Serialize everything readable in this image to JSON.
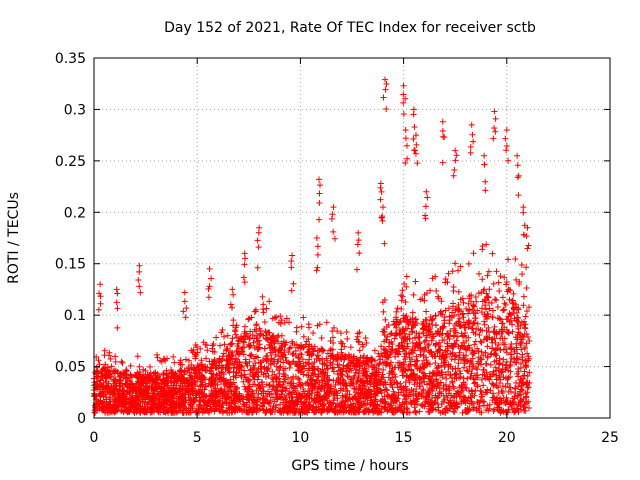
{
  "chart_data": {
    "type": "scatter",
    "title": "Day 152 of 2021, Rate Of TEC Index for receiver sctb",
    "xlabel": "GPS time / hours",
    "ylabel": "ROTI / TECUs",
    "xlim": [
      0,
      25
    ],
    "ylim": [
      0,
      0.35
    ],
    "x_ticks": [
      {
        "value": 0,
        "label": "0"
      },
      {
        "value": 5,
        "label": "5"
      },
      {
        "value": 10,
        "label": "10"
      },
      {
        "value": 15,
        "label": "15"
      },
      {
        "value": 20,
        "label": "20"
      },
      {
        "value": 25,
        "label": "25"
      }
    ],
    "y_ticks": [
      {
        "value": 0,
        "label": "0"
      },
      {
        "value": 0.05,
        "label": "0.05"
      },
      {
        "value": 0.1,
        "label": "0.1"
      },
      {
        "value": 0.15,
        "label": "0.15"
      },
      {
        "value": 0.2,
        "label": "0.2"
      },
      {
        "value": 0.25,
        "label": "0.25"
      },
      {
        "value": 0.3,
        "label": "0.3"
      },
      {
        "value": 0.35,
        "label": "0.35"
      }
    ],
    "grid": true,
    "marker": "plus",
    "marker_color": "#ff0000",
    "series": [
      {
        "name": "sctb",
        "x_range": [
          0,
          21.1
        ],
        "baseline_envelope_hours": [
          0,
          2,
          4,
          6,
          7,
          8,
          10,
          12,
          13.8,
          14,
          15,
          16,
          17,
          18,
          19,
          20,
          21,
          21.1
        ],
        "baseline_envelope_roti": [
          0.06,
          0.05,
          0.055,
          0.07,
          0.1,
          0.11,
          0.09,
          0.08,
          0.07,
          0.11,
          0.13,
          0.12,
          0.14,
          0.15,
          0.16,
          0.15,
          0.14,
          0.1
        ],
        "notable_points": [
          {
            "x": 0.3,
            "y": 0.13
          },
          {
            "x": 1.1,
            "y": 0.125
          },
          {
            "x": 2.2,
            "y": 0.148
          },
          {
            "x": 4.4,
            "y": 0.122
          },
          {
            "x": 5.6,
            "y": 0.145
          },
          {
            "x": 6.7,
            "y": 0.125
          },
          {
            "x": 7.3,
            "y": 0.16
          },
          {
            "x": 8.0,
            "y": 0.185
          },
          {
            "x": 9.6,
            "y": 0.158
          },
          {
            "x": 10.8,
            "y": 0.175
          },
          {
            "x": 10.9,
            "y": 0.232
          },
          {
            "x": 11.6,
            "y": 0.205
          },
          {
            "x": 12.8,
            "y": 0.18
          },
          {
            "x": 13.9,
            "y": 0.228
          },
          {
            "x": 14.0,
            "y": 0.205
          },
          {
            "x": 14.1,
            "y": 0.329
          },
          {
            "x": 15.0,
            "y": 0.323
          },
          {
            "x": 15.1,
            "y": 0.28
          },
          {
            "x": 15.5,
            "y": 0.3
          },
          {
            "x": 15.6,
            "y": 0.275
          },
          {
            "x": 16.1,
            "y": 0.22
          },
          {
            "x": 16.9,
            "y": 0.288
          },
          {
            "x": 17.5,
            "y": 0.26
          },
          {
            "x": 18.3,
            "y": 0.285
          },
          {
            "x": 18.9,
            "y": 0.255
          },
          {
            "x": 19.4,
            "y": 0.298
          },
          {
            "x": 20.0,
            "y": 0.28
          },
          {
            "x": 20.5,
            "y": 0.255
          },
          {
            "x": 20.8,
            "y": 0.205
          },
          {
            "x": 21.0,
            "y": 0.185
          }
        ]
      }
    ]
  }
}
